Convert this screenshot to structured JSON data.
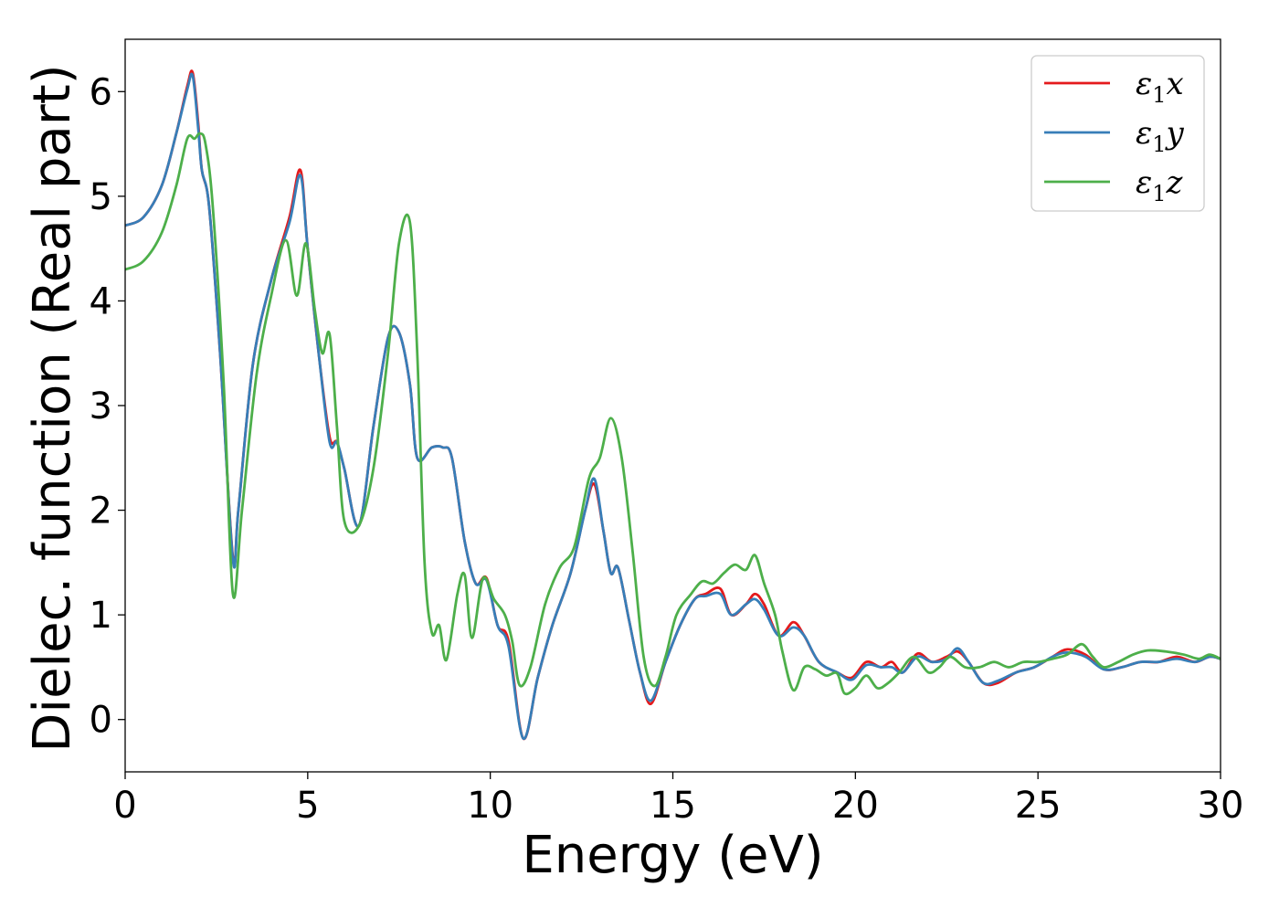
{
  "chart_data": {
    "type": "line",
    "title": "",
    "xlabel": "Energy (eV)",
    "ylabel": "Dielec. function (Real part)",
    "xlim": [
      0,
      30
    ],
    "ylim": [
      -0.5,
      6.5
    ],
    "xticks": [
      0,
      5,
      10,
      15,
      20,
      25,
      30
    ],
    "yticks": [
      0,
      1,
      2,
      3,
      4,
      5,
      6
    ],
    "grid": false,
    "legend_position": "top-right",
    "series": [
      {
        "name": "ε₁x",
        "label_base": "ε",
        "label_sub": "1",
        "label_tail": "x",
        "color": "#e41a1c",
        "x": [
          0,
          0.5,
          1.0,
          1.4,
          1.7,
          1.85,
          2.0,
          2.1,
          2.3,
          2.6,
          2.95,
          3.1,
          3.5,
          4.0,
          4.5,
          4.8,
          5.0,
          5.3,
          5.6,
          5.8,
          6.0,
          6.4,
          6.8,
          7.2,
          7.5,
          7.8,
          8.0,
          8.4,
          8.7,
          8.95,
          9.3,
          9.6,
          9.9,
          10.2,
          10.5,
          10.9,
          11.3,
          11.7,
          12.2,
          12.6,
          12.85,
          13.1,
          13.3,
          13.5,
          13.8,
          14.1,
          14.4,
          14.8,
          15.2,
          15.6,
          15.9,
          16.3,
          16.6,
          17.0,
          17.25,
          17.5,
          17.9,
          18.3,
          18.6,
          19.0,
          19.5,
          19.9,
          20.3,
          20.7,
          21.0,
          21.3,
          21.7,
          22.1,
          22.5,
          22.8,
          23.1,
          23.5,
          23.9,
          24.4,
          24.9,
          25.4,
          25.8,
          26.3,
          26.8,
          27.3,
          27.8,
          28.3,
          28.8,
          29.3,
          29.7,
          30.0
        ],
        "values": [
          4.72,
          4.8,
          5.1,
          5.6,
          6.05,
          6.18,
          5.7,
          5.25,
          4.9,
          3.5,
          1.55,
          2.0,
          3.4,
          4.2,
          4.8,
          5.25,
          4.5,
          3.5,
          2.7,
          2.65,
          2.4,
          1.85,
          2.8,
          3.65,
          3.7,
          3.2,
          2.5,
          2.6,
          2.6,
          2.5,
          1.7,
          1.3,
          1.35,
          0.9,
          0.75,
          -0.18,
          0.4,
          0.9,
          1.4,
          2.0,
          2.25,
          1.8,
          1.4,
          1.45,
          0.95,
          0.45,
          0.15,
          0.55,
          0.9,
          1.15,
          1.2,
          1.25,
          1.0,
          1.1,
          1.2,
          1.1,
          0.8,
          0.93,
          0.8,
          0.55,
          0.45,
          0.4,
          0.55,
          0.5,
          0.55,
          0.45,
          0.63,
          0.55,
          0.6,
          0.65,
          0.55,
          0.35,
          0.35,
          0.45,
          0.5,
          0.6,
          0.67,
          0.62,
          0.48,
          0.5,
          0.55,
          0.55,
          0.6,
          0.55,
          0.6,
          0.58
        ]
      },
      {
        "name": "ε₁y",
        "label_base": "ε",
        "label_sub": "1",
        "label_tail": "y",
        "color": "#377eb8",
        "x": [
          0,
          0.5,
          1.0,
          1.4,
          1.7,
          1.85,
          2.0,
          2.1,
          2.3,
          2.6,
          2.95,
          3.1,
          3.5,
          4.0,
          4.5,
          4.8,
          5.0,
          5.3,
          5.6,
          5.8,
          6.0,
          6.4,
          6.8,
          7.2,
          7.5,
          7.8,
          8.0,
          8.4,
          8.7,
          8.95,
          9.3,
          9.6,
          9.9,
          10.2,
          10.5,
          10.9,
          11.3,
          11.7,
          12.2,
          12.6,
          12.85,
          13.1,
          13.3,
          13.5,
          13.8,
          14.1,
          14.4,
          14.8,
          15.2,
          15.6,
          15.9,
          16.3,
          16.6,
          17.0,
          17.25,
          17.5,
          17.9,
          18.3,
          18.6,
          19.0,
          19.5,
          19.9,
          20.3,
          20.7,
          21.0,
          21.3,
          21.7,
          22.1,
          22.5,
          22.8,
          23.1,
          23.5,
          23.9,
          24.4,
          24.9,
          25.4,
          25.8,
          26.3,
          26.8,
          27.3,
          27.8,
          28.3,
          28.8,
          29.3,
          29.7,
          30.0
        ],
        "values": [
          4.72,
          4.8,
          5.1,
          5.6,
          6.02,
          6.15,
          5.65,
          5.25,
          4.9,
          3.5,
          1.53,
          2.0,
          3.4,
          4.2,
          4.75,
          5.2,
          4.5,
          3.5,
          2.65,
          2.65,
          2.4,
          1.85,
          2.8,
          3.65,
          3.7,
          3.2,
          2.5,
          2.6,
          2.6,
          2.5,
          1.7,
          1.3,
          1.33,
          0.9,
          0.7,
          -0.18,
          0.4,
          0.9,
          1.4,
          2.0,
          2.3,
          1.8,
          1.4,
          1.45,
          0.95,
          0.45,
          0.18,
          0.55,
          0.9,
          1.15,
          1.18,
          1.2,
          1.0,
          1.1,
          1.15,
          1.05,
          0.8,
          0.88,
          0.8,
          0.55,
          0.45,
          0.38,
          0.52,
          0.5,
          0.5,
          0.45,
          0.6,
          0.55,
          0.58,
          0.68,
          0.55,
          0.35,
          0.37,
          0.45,
          0.5,
          0.6,
          0.64,
          0.6,
          0.48,
          0.5,
          0.55,
          0.55,
          0.58,
          0.55,
          0.6,
          0.58
        ]
      },
      {
        "name": "ε₁z",
        "label_base": "ε",
        "label_sub": "1",
        "label_tail": "z",
        "color": "#4daf4a",
        "x": [
          0,
          0.5,
          1.0,
          1.4,
          1.7,
          1.9,
          2.05,
          2.2,
          2.4,
          2.7,
          2.95,
          3.2,
          3.6,
          4.0,
          4.4,
          4.7,
          4.95,
          5.2,
          5.4,
          5.6,
          5.8,
          6.0,
          6.4,
          6.8,
          7.2,
          7.5,
          7.8,
          8.0,
          8.2,
          8.4,
          8.6,
          8.8,
          9.1,
          9.3,
          9.5,
          9.8,
          10.1,
          10.4,
          10.6,
          10.8,
          11.1,
          11.5,
          11.9,
          12.3,
          12.7,
          13.0,
          13.3,
          13.6,
          13.9,
          14.2,
          14.5,
          14.8,
          15.1,
          15.5,
          15.8,
          16.1,
          16.4,
          16.7,
          17.0,
          17.25,
          17.5,
          17.8,
          18.0,
          18.3,
          18.6,
          18.9,
          19.2,
          19.5,
          19.7,
          20.0,
          20.3,
          20.6,
          20.9,
          21.2,
          21.6,
          22.0,
          22.3,
          22.6,
          23.0,
          23.4,
          23.8,
          24.2,
          24.6,
          25.0,
          25.4,
          25.8,
          26.2,
          26.5,
          26.8,
          27.2,
          27.6,
          28.0,
          28.5,
          29.0,
          29.4,
          29.7,
          30.0
        ],
        "values": [
          4.3,
          4.38,
          4.65,
          5.1,
          5.55,
          5.55,
          5.6,
          5.5,
          4.9,
          3.2,
          1.2,
          2.0,
          3.3,
          4.05,
          4.58,
          4.05,
          4.55,
          3.9,
          3.5,
          3.68,
          2.8,
          1.9,
          1.85,
          2.4,
          3.5,
          4.55,
          4.75,
          3.5,
          1.5,
          0.83,
          0.9,
          0.57,
          1.2,
          1.38,
          0.78,
          1.35,
          1.15,
          1.0,
          0.75,
          0.33,
          0.5,
          1.1,
          1.45,
          1.65,
          2.3,
          2.5,
          2.88,
          2.5,
          1.6,
          0.6,
          0.32,
          0.6,
          1.0,
          1.2,
          1.32,
          1.3,
          1.4,
          1.48,
          1.43,
          1.57,
          1.3,
          1.0,
          0.65,
          0.28,
          0.5,
          0.48,
          0.42,
          0.44,
          0.25,
          0.3,
          0.42,
          0.3,
          0.35,
          0.45,
          0.6,
          0.45,
          0.5,
          0.6,
          0.5,
          0.5,
          0.55,
          0.5,
          0.55,
          0.55,
          0.58,
          0.62,
          0.72,
          0.6,
          0.5,
          0.55,
          0.62,
          0.66,
          0.65,
          0.62,
          0.58,
          0.62,
          0.58
        ]
      }
    ]
  }
}
